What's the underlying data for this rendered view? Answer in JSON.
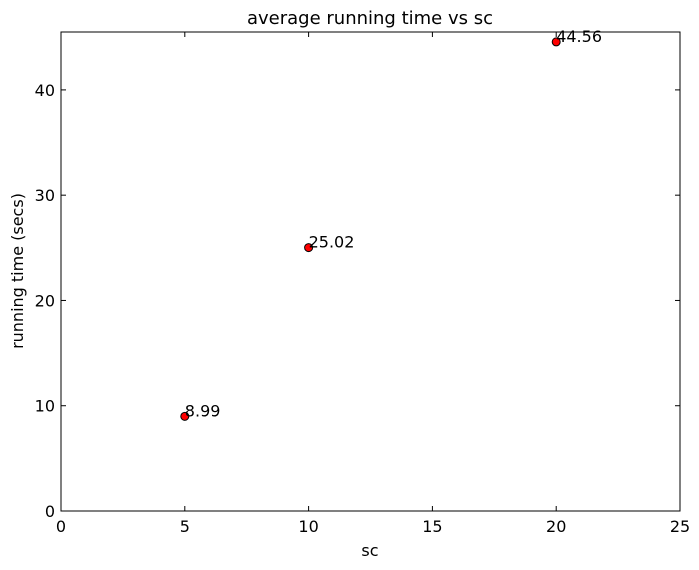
{
  "chart_data": {
    "type": "scatter",
    "title": "average running time vs sc",
    "xlabel": "sc",
    "ylabel": "running time (secs)",
    "xlim": [
      0,
      25
    ],
    "ylim": [
      0,
      45.5
    ],
    "xticks": [
      0,
      5,
      10,
      15,
      20,
      25
    ],
    "yticks": [
      0,
      10,
      20,
      30,
      40
    ],
    "grid": false,
    "legend": "none",
    "points": [
      {
        "x": 5,
        "y": 8.99,
        "label": "8.99"
      },
      {
        "x": 10,
        "y": 25.02,
        "label": "25.02"
      },
      {
        "x": 20,
        "y": 44.56,
        "label": "44.56"
      }
    ],
    "colors": {
      "marker_fill": "#ff0000",
      "marker_edge": "#000000",
      "axes": "#000000",
      "background": "#ffffff"
    }
  }
}
